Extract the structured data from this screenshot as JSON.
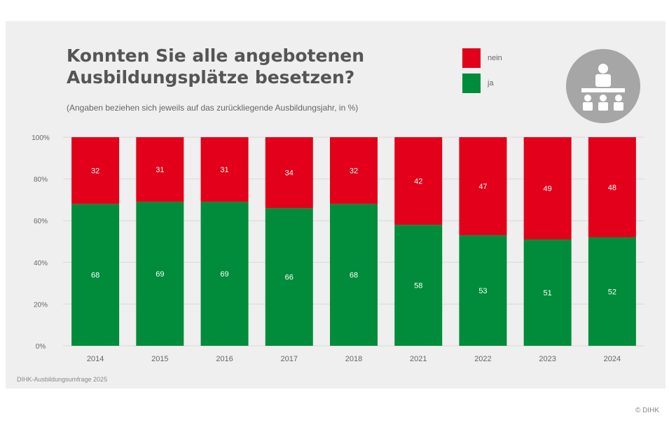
{
  "header": {
    "title_line1": "Konnten Sie alle angebotenen",
    "title_line2": "Ausbildungsplätze besetzen?",
    "subtitle": "(Angaben beziehen sich jeweils auf das zurückliegende Ausbildungsjahr, in %)"
  },
  "legend": {
    "items": [
      {
        "label": "nein",
        "color": "#e2001a"
      },
      {
        "label": "ja",
        "color": "#008c3a"
      }
    ]
  },
  "emblem": {
    "icon": "training-classroom-icon"
  },
  "footer": {
    "source": "DIHK-Ausbildungsumfrage 2025",
    "copyright": "© DIHK"
  },
  "chart_data": {
    "type": "bar",
    "stacked": true,
    "categories": [
      "2014",
      "2015",
      "2016",
      "2017",
      "2018",
      "2021",
      "2022",
      "2023",
      "2024"
    ],
    "series": [
      {
        "name": "ja",
        "color": "#008c3a",
        "values": [
          68,
          69,
          69,
          66,
          68,
          58,
          53,
          51,
          52
        ]
      },
      {
        "name": "nein",
        "color": "#e2001a",
        "values": [
          32,
          31,
          31,
          34,
          32,
          42,
          47,
          49,
          48
        ]
      }
    ],
    "ylim": [
      0,
      100
    ],
    "yticks": [
      "0%",
      "20%",
      "40%",
      "60%",
      "80%",
      "100%"
    ],
    "grid": true,
    "legend_position": "top-right"
  }
}
